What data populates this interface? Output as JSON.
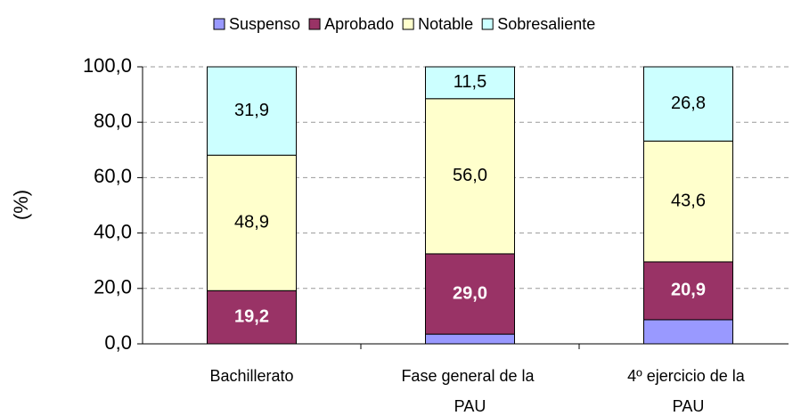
{
  "chart_data": {
    "type": "stacked_bar",
    "y_label": "(%)",
    "categories": [
      "Bachillerato",
      "Fase general de la PAU",
      "4º ejercicio de la PAU"
    ],
    "series": [
      {
        "name": "Suspenso",
        "color": "#9999ff",
        "values": [
          0.0,
          3.5,
          8.7
        ]
      },
      {
        "name": "Aprobado",
        "color": "#993366",
        "values": [
          19.2,
          29.0,
          20.9
        ],
        "value_labels": [
          "19,2",
          "29,0",
          "20,9"
        ]
      },
      {
        "name": "Notable",
        "color": "#ffffcc",
        "values": [
          48.9,
          56.0,
          43.6
        ],
        "value_labels": [
          "48,9",
          "56,0",
          "43,6"
        ]
      },
      {
        "name": "Sobresaliente",
        "color": "#ccffff",
        "values": [
          31.9,
          11.5,
          26.8
        ],
        "value_labels": [
          "31,9",
          "11,5",
          "26,8"
        ]
      }
    ],
    "ylim": [
      0,
      100
    ],
    "yticks": [
      {
        "value": 0,
        "label": "0,0"
      },
      {
        "value": 20,
        "label": "20,0"
      },
      {
        "value": 40,
        "label": "40,0"
      },
      {
        "value": 60,
        "label": "60,0"
      },
      {
        "value": 80,
        "label": "80,0"
      },
      {
        "value": 100,
        "label": "100,0"
      }
    ],
    "grid": true,
    "legend": "top"
  }
}
